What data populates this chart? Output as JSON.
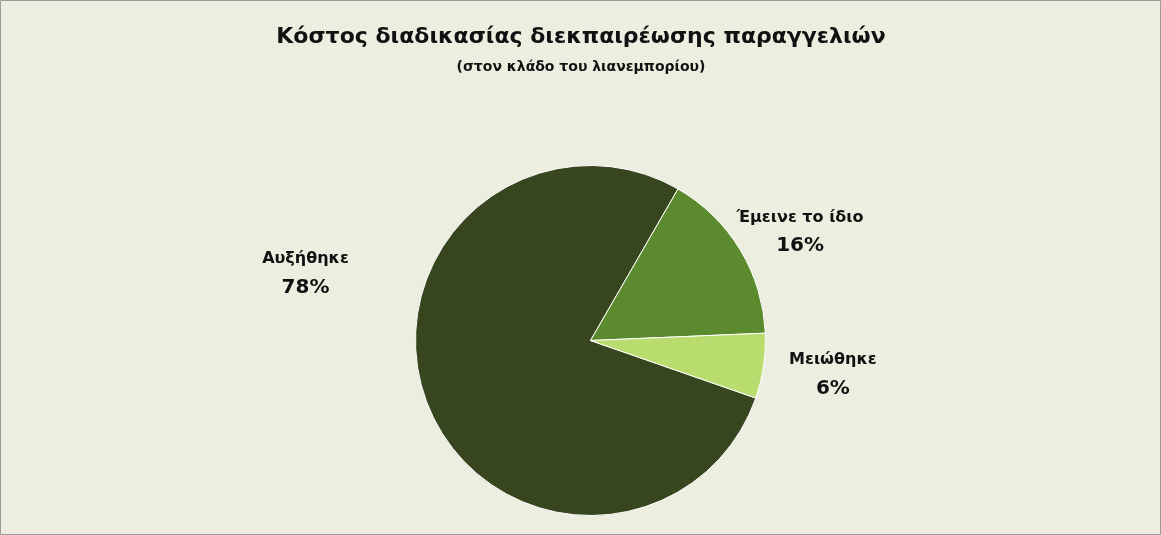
{
  "chart_data": {
    "type": "pie",
    "title": "Κόστος διαδικασίας διεκπαιρέωσης παραγγελιών",
    "subtitle": "(στον κλάδο του λιανεμπορίου)",
    "categories": [
      "Αυξήθηκε",
      "Έμεινε το ίδιο",
      "Μειώθηκε"
    ],
    "values": [
      78,
      16,
      6
    ],
    "value_labels": [
      "78%",
      "16%",
      "6%"
    ],
    "colors": [
      "#38461f",
      "#5b8a2f",
      "#b9dc6e"
    ]
  }
}
